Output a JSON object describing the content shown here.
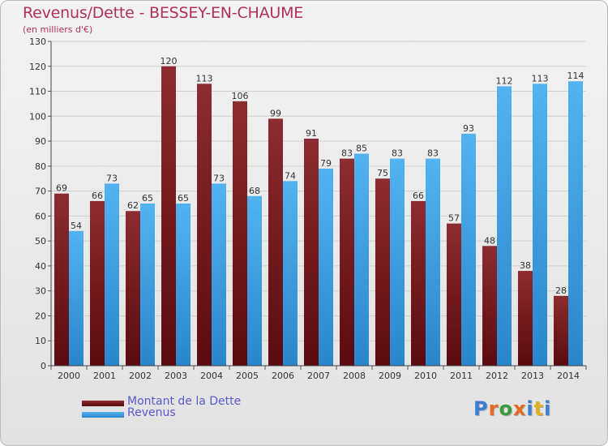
{
  "chart_data": {
    "type": "bar",
    "title": "Revenus/Dette - BESSEY-EN-CHAUME",
    "subtitle": "(en milliers d'€)",
    "categories": [
      "2000",
      "2001",
      "2002",
      "2003",
      "2004",
      "2005",
      "2006",
      "2007",
      "2008",
      "2009",
      "2010",
      "2011",
      "2012",
      "2013",
      "2014"
    ],
    "series": [
      {
        "name": "Montant de la Dette",
        "color": "#7a1f24",
        "values": [
          69,
          66,
          62,
          120,
          113,
          106,
          99,
          91,
          83,
          75,
          66,
          57,
          48,
          38,
          28
        ]
      },
      {
        "name": "Revenus",
        "color": "#3d9fe3",
        "values": [
          54,
          73,
          65,
          65,
          73,
          68,
          74,
          79,
          85,
          83,
          83,
          93,
          112,
          113,
          114
        ]
      }
    ],
    "ylim": [
      0,
      130
    ],
    "yticks": [
      0,
      10,
      20,
      30,
      40,
      50,
      60,
      70,
      80,
      90,
      100,
      110,
      120,
      130
    ],
    "grid": "horizontal",
    "legend_position": "bottom-left"
  },
  "legend": [
    {
      "label": "Montant de la Dette",
      "color": "#7a1f24"
    },
    {
      "label": "Revenus",
      "color": "#3d9fe3"
    }
  ],
  "logo": {
    "text": "Proxiti",
    "letter_colors": [
      "#3a7fd0",
      "#e7681f",
      "#3a9c3a",
      "#e7681f",
      "#3a7fd0",
      "#e0b020",
      "#3a7fd0"
    ]
  }
}
